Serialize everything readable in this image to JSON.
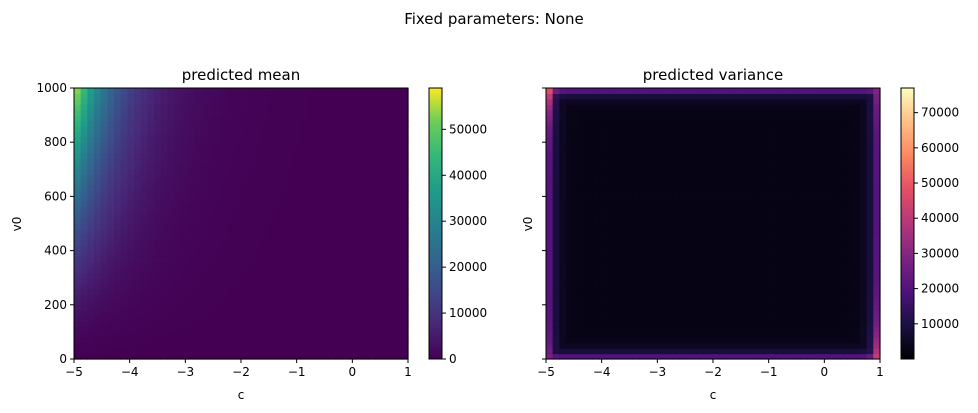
{
  "figure": {
    "suptitle": "Fixed parameters: None"
  },
  "chart_data": [
    {
      "type": "heatmap",
      "title": "predicted mean",
      "xlabel": "c",
      "ylabel": "v0",
      "xlim": [
        -5,
        1
      ],
      "ylim": [
        0,
        1000
      ],
      "xticks": [
        "−5",
        "−4",
        "−3",
        "−2",
        "−1",
        "0",
        "1"
      ],
      "yticks": [
        "0",
        "200",
        "400",
        "600",
        "800",
        "1000"
      ],
      "grid": false,
      "colormap": "viridis",
      "colorbar": {
        "min": 0,
        "max": 59000,
        "ticks": [
          "0",
          "10000",
          "20000",
          "30000",
          "40000",
          "50000"
        ]
      },
      "model": "value rises steeply toward c=-5 and high v0 (max ≈ 59000 at c=-5, v0=1000), near 0 for c > -2 and for low v0"
    },
    {
      "type": "heatmap",
      "title": "predicted variance",
      "xlabel": "c",
      "ylabel": "v0",
      "xlim": [
        -5,
        1
      ],
      "ylim": [
        0,
        1000
      ],
      "xticks": [
        "−5",
        "−4",
        "−3",
        "−2",
        "−1",
        "0",
        "1"
      ],
      "yticks": [],
      "grid": false,
      "colormap": "magma",
      "colorbar": {
        "min": 0,
        "max": 77000,
        "ticks": [
          "10000",
          "20000",
          "30000",
          "40000",
          "50000",
          "60000",
          "70000"
        ]
      },
      "model": "near 0 in interior; elevated along edges, strongest at left and right edges near the corners (max ≈ 77000 at c=-5, v0=1000)"
    }
  ]
}
